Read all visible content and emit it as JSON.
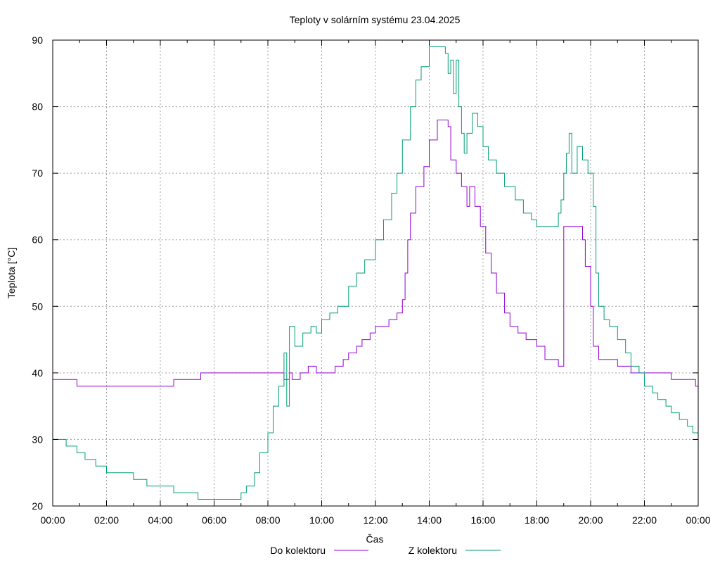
{
  "chart_data": {
    "type": "line",
    "title": "Teploty v solárním systému 23.04.2025",
    "xlabel": "Čas",
    "ylabel": "Teplota [°C]",
    "xlim": [
      0,
      24
    ],
    "ylim": [
      20,
      90
    ],
    "x_ticks": [
      0,
      2,
      4,
      6,
      8,
      10,
      12,
      14,
      16,
      18,
      20,
      22,
      24
    ],
    "x_tick_labels": [
      "00:00",
      "02:00",
      "04:00",
      "06:00",
      "08:00",
      "10:00",
      "12:00",
      "14:00",
      "16:00",
      "18:00",
      "20:00",
      "22:00",
      "00:00"
    ],
    "y_ticks": [
      20,
      30,
      40,
      50,
      60,
      70,
      80,
      90
    ],
    "y_tick_labels": [
      "20",
      "30",
      "40",
      "50",
      "60",
      "70",
      "80",
      "90"
    ],
    "grid": true,
    "legend_position": "bottom",
    "series": [
      {
        "name": "Do kolektoru",
        "color": "#9400d3",
        "x": [
          0,
          0.9,
          0.9,
          2.4,
          4.5,
          4.5,
          5.5,
          5.5,
          8.5,
          8.6,
          8.8,
          8.9,
          9.2,
          9.5,
          9.8,
          10,
          10.5,
          10.8,
          11,
          11.3,
          11.5,
          11.8,
          12,
          12.3,
          12.5,
          12.8,
          13.0,
          13.1,
          13.2,
          13.3,
          13.5,
          13.8,
          14.0,
          14.3,
          14.5,
          14.7,
          14.8,
          15.0,
          15.2,
          15.4,
          15.5,
          15.7,
          15.9,
          16.1,
          16.3,
          16.5,
          16.8,
          17.0,
          17.3,
          17.6,
          18.0,
          18.3,
          18.5,
          18.8,
          18.9,
          19.0,
          19.1,
          19.2,
          19.5,
          19.7,
          19.8,
          20.0,
          20.1,
          20.3,
          20.5,
          21.0,
          21.5,
          22.5,
          23.0,
          23.5,
          23.9,
          24
        ],
        "y": [
          39,
          39,
          38,
          38,
          38,
          39,
          39,
          40,
          40,
          39,
          40,
          39,
          40,
          41,
          40,
          40,
          41,
          42,
          43,
          44,
          45,
          46,
          47,
          47,
          48,
          49,
          51,
          55,
          60,
          64,
          68,
          71,
          75,
          78,
          78,
          77,
          72,
          70,
          68,
          65,
          68,
          65,
          62,
          58,
          55,
          52,
          49,
          47,
          46,
          45,
          44,
          42,
          42,
          41,
          41,
          62,
          62,
          62,
          62,
          60,
          56,
          50,
          44,
          42,
          42,
          41,
          40,
          40,
          39,
          39,
          38,
          38
        ]
      },
      {
        "name": "Z kolektoru",
        "color": "#009e73",
        "x": [
          0,
          0.4,
          0.5,
          0.9,
          1.2,
          1.6,
          2.0,
          2.5,
          3.0,
          3.5,
          4.5,
          5.0,
          5.4,
          5.6,
          5.9,
          6.4,
          6.9,
          7.0,
          7.2,
          7.5,
          7.7,
          8.0,
          8.2,
          8.4,
          8.6,
          8.7,
          8.8,
          9.0,
          9.3,
          9.6,
          9.8,
          10.0,
          10.3,
          10.6,
          11.0,
          11.3,
          11.6,
          12.0,
          12.3,
          12.6,
          12.8,
          13.0,
          13.3,
          13.5,
          13.7,
          14.0,
          14.3,
          14.5,
          14.6,
          14.7,
          14.8,
          14.9,
          15.0,
          15.1,
          15.2,
          15.3,
          15.4,
          15.6,
          15.8,
          16.0,
          16.2,
          16.5,
          16.8,
          17.2,
          17.5,
          17.8,
          18.0,
          18.3,
          18.5,
          18.8,
          18.9,
          19.0,
          19.1,
          19.2,
          19.3,
          19.5,
          19.7,
          19.9,
          20.0,
          20.1,
          20.2,
          20.3,
          20.5,
          20.7,
          21.0,
          21.3,
          21.5,
          21.8,
          22.0,
          22.3,
          22.5,
          22.8,
          23.0,
          23.3,
          23.6,
          23.8,
          24
        ],
        "y": [
          30,
          30,
          29,
          28,
          27,
          26,
          25,
          25,
          24,
          23,
          22,
          22,
          21,
          21,
          21,
          21,
          21,
          22,
          23,
          25,
          28,
          31,
          35,
          38,
          43,
          35,
          47,
          44,
          46,
          47,
          46,
          48,
          49,
          50,
          53,
          55,
          57,
          60,
          63,
          67,
          70,
          75,
          80,
          84,
          86,
          89,
          89,
          89,
          88,
          85,
          87,
          82,
          87,
          80,
          76,
          73,
          76,
          79,
          77,
          74,
          72,
          70,
          68,
          66,
          64,
          63,
          62,
          62,
          62,
          64,
          66,
          70,
          73,
          76,
          70,
          74,
          72,
          70,
          70,
          65,
          55,
          50,
          48,
          47,
          45,
          43,
          41,
          40,
          38,
          37,
          36,
          35,
          34,
          33,
          32,
          31,
          30
        ]
      }
    ]
  }
}
